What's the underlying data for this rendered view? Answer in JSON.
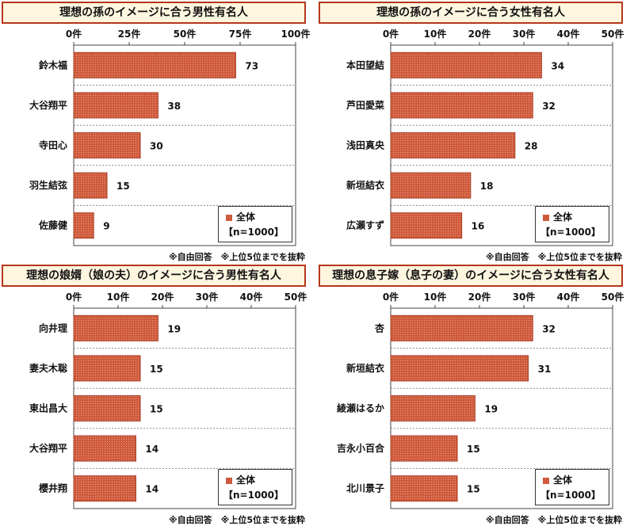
{
  "colors": {
    "bar": "#cf5a3c",
    "bar_edge": "#a73b22",
    "frame": "#b5361b",
    "title_bg": "#fff6e0"
  },
  "chart_data": [
    {
      "type": "bar",
      "title": "理想の孫のイメージに合う男性有名人",
      "categories": [
        "鈴木福",
        "大谷翔平",
        "寺田心",
        "羽生結弦",
        "佐藤健"
      ],
      "values": [
        73,
        38,
        30,
        15,
        9
      ],
      "xlim": [
        0,
        100
      ],
      "ticks": [
        0,
        25,
        50,
        75,
        100
      ],
      "tick_labels": [
        "0件",
        "25件",
        "50件",
        "75件",
        "100件"
      ],
      "grid": true
    },
    {
      "type": "bar",
      "title": "理想の孫のイメージに合う女性有名人",
      "categories": [
        "本田望結",
        "芦田愛菜",
        "浅田真央",
        "新垣結衣",
        "広瀬すず"
      ],
      "values": [
        34,
        32,
        28,
        18,
        16
      ],
      "xlim": [
        0,
        50
      ],
      "ticks": [
        0,
        10,
        20,
        30,
        40,
        50
      ],
      "tick_labels": [
        "0件",
        "10件",
        "20件",
        "30件",
        "40件",
        "50件"
      ],
      "grid": true
    },
    {
      "type": "bar",
      "title": "理想の娘婿（娘の夫）のイメージに合う男性有名人",
      "categories": [
        "向井理",
        "妻夫木聡",
        "東出昌大",
        "大谷翔平",
        "櫻井翔"
      ],
      "values": [
        19,
        15,
        15,
        14,
        14
      ],
      "xlim": [
        0,
        50
      ],
      "ticks": [
        0,
        10,
        20,
        30,
        40,
        50
      ],
      "tick_labels": [
        "0件",
        "10件",
        "20件",
        "30件",
        "40件",
        "50件"
      ],
      "grid": true
    },
    {
      "type": "bar",
      "title": "理想の息子嫁（息子の妻）のイメージに合う女性有名人",
      "categories": [
        "杏",
        "新垣結衣",
        "綾瀬はるか",
        "吉永小百合",
        "北川景子"
      ],
      "values": [
        32,
        31,
        19,
        15,
        15
      ],
      "xlim": [
        0,
        50
      ],
      "ticks": [
        0,
        10,
        20,
        30,
        40,
        50
      ],
      "tick_labels": [
        "0件",
        "10件",
        "20件",
        "30件",
        "40件",
        "50件"
      ],
      "grid": true
    }
  ],
  "legend": {
    "series_name": "全体",
    "n_label": "【n=1000】"
  },
  "note": "※自由回答　※上位5位までを抜粋"
}
